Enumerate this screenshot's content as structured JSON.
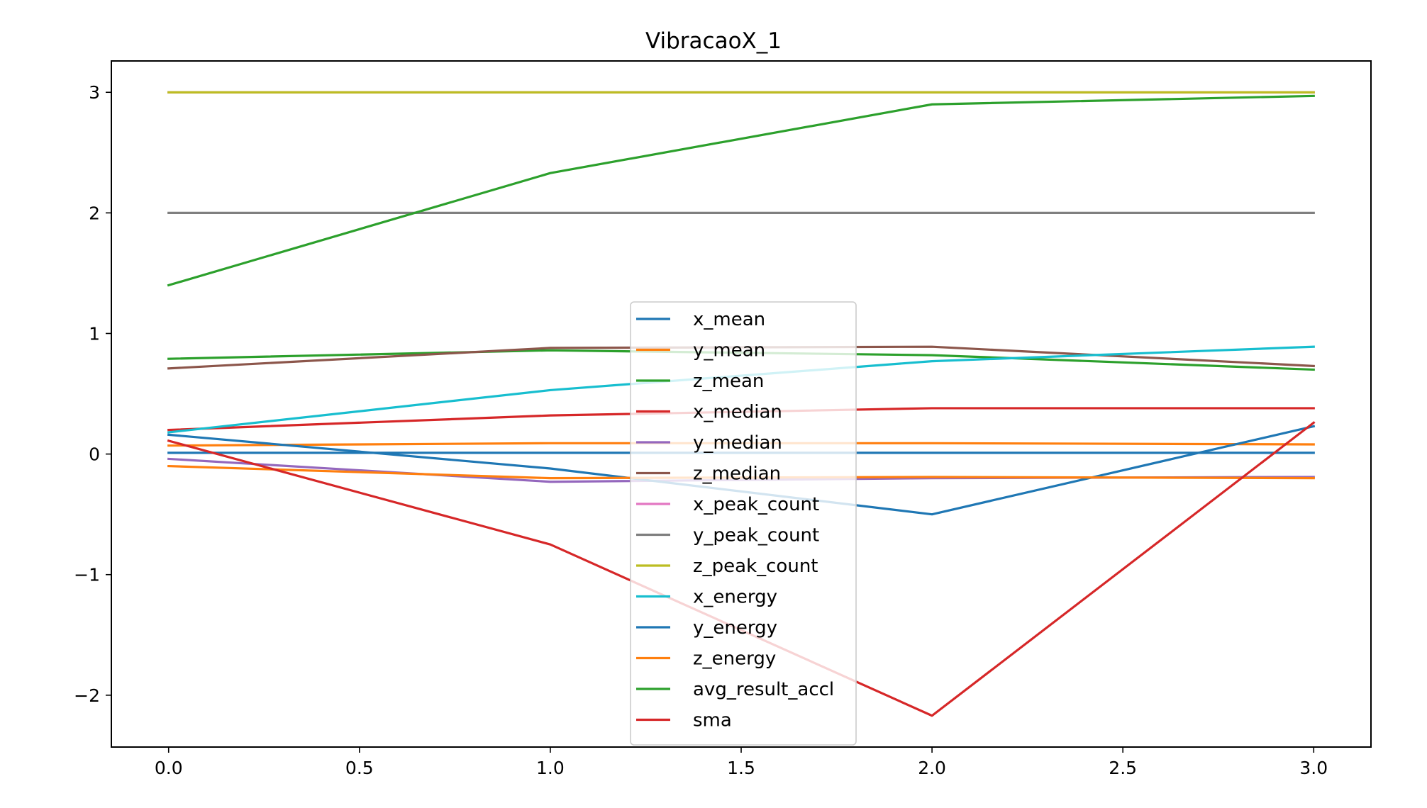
{
  "chart_data": {
    "type": "line",
    "title": "VibracaoX_1",
    "xlabel": "",
    "ylabel": "",
    "x": [
      0.0,
      1.0,
      2.0,
      3.0
    ],
    "xlim": [
      -0.15,
      3.15
    ],
    "ylim": [
      -2.43,
      3.26
    ],
    "xticks": [
      0.0,
      0.5,
      1.0,
      1.5,
      2.0,
      2.5,
      3.0
    ],
    "xtick_labels": [
      "0.0",
      "0.5",
      "1.0",
      "1.5",
      "2.0",
      "2.5",
      "3.0"
    ],
    "yticks": [
      3,
      2,
      1,
      0,
      -1,
      -2
    ],
    "ytick_labels": [
      "3",
      "2",
      "1",
      "0",
      "−1",
      "−2"
    ],
    "grid": false,
    "legend_position": "center-bottom",
    "series": [
      {
        "name": "x_mean",
        "color": "#1f77b4",
        "values": [
          0.01,
          0.01,
          0.01,
          0.01
        ]
      },
      {
        "name": "y_mean",
        "color": "#ff7f0e",
        "values": [
          0.07,
          0.09,
          0.09,
          0.08
        ]
      },
      {
        "name": "z_mean",
        "color": "#2ca02c",
        "values": [
          0.79,
          0.86,
          0.82,
          0.7
        ]
      },
      {
        "name": "x_median",
        "color": "#d62728",
        "values": [
          0.2,
          0.32,
          0.38,
          0.38
        ]
      },
      {
        "name": "y_median",
        "color": "#9467bd",
        "values": [
          -0.04,
          -0.23,
          -0.2,
          -0.19
        ]
      },
      {
        "name": "z_median",
        "color": "#8c564b",
        "values": [
          0.71,
          0.88,
          0.89,
          0.73
        ]
      },
      {
        "name": "x_peak_count",
        "color": "#e377c2",
        "values": [
          3,
          3,
          3,
          3
        ]
      },
      {
        "name": "y_peak_count",
        "color": "#7f7f7f",
        "values": [
          2,
          2,
          2,
          2
        ]
      },
      {
        "name": "z_peak_count",
        "color": "#bcbd22",
        "values": [
          3,
          3,
          3,
          3
        ]
      },
      {
        "name": "x_energy",
        "color": "#17becf",
        "values": [
          0.18,
          0.53,
          0.77,
          0.89
        ]
      },
      {
        "name": "y_energy",
        "color": "#1f77b4",
        "values": [
          0.16,
          -0.12,
          -0.5,
          0.23
        ]
      },
      {
        "name": "z_energy",
        "color": "#ff7f0e",
        "values": [
          -0.1,
          -0.2,
          -0.19,
          -0.2
        ]
      },
      {
        "name": "avg_result_accl",
        "color": "#2ca02c",
        "values": [
          1.4,
          2.33,
          2.9,
          2.97
        ]
      },
      {
        "name": "sma",
        "color": "#d62728",
        "values": [
          0.11,
          -0.75,
          -2.17,
          0.26
        ]
      }
    ]
  }
}
